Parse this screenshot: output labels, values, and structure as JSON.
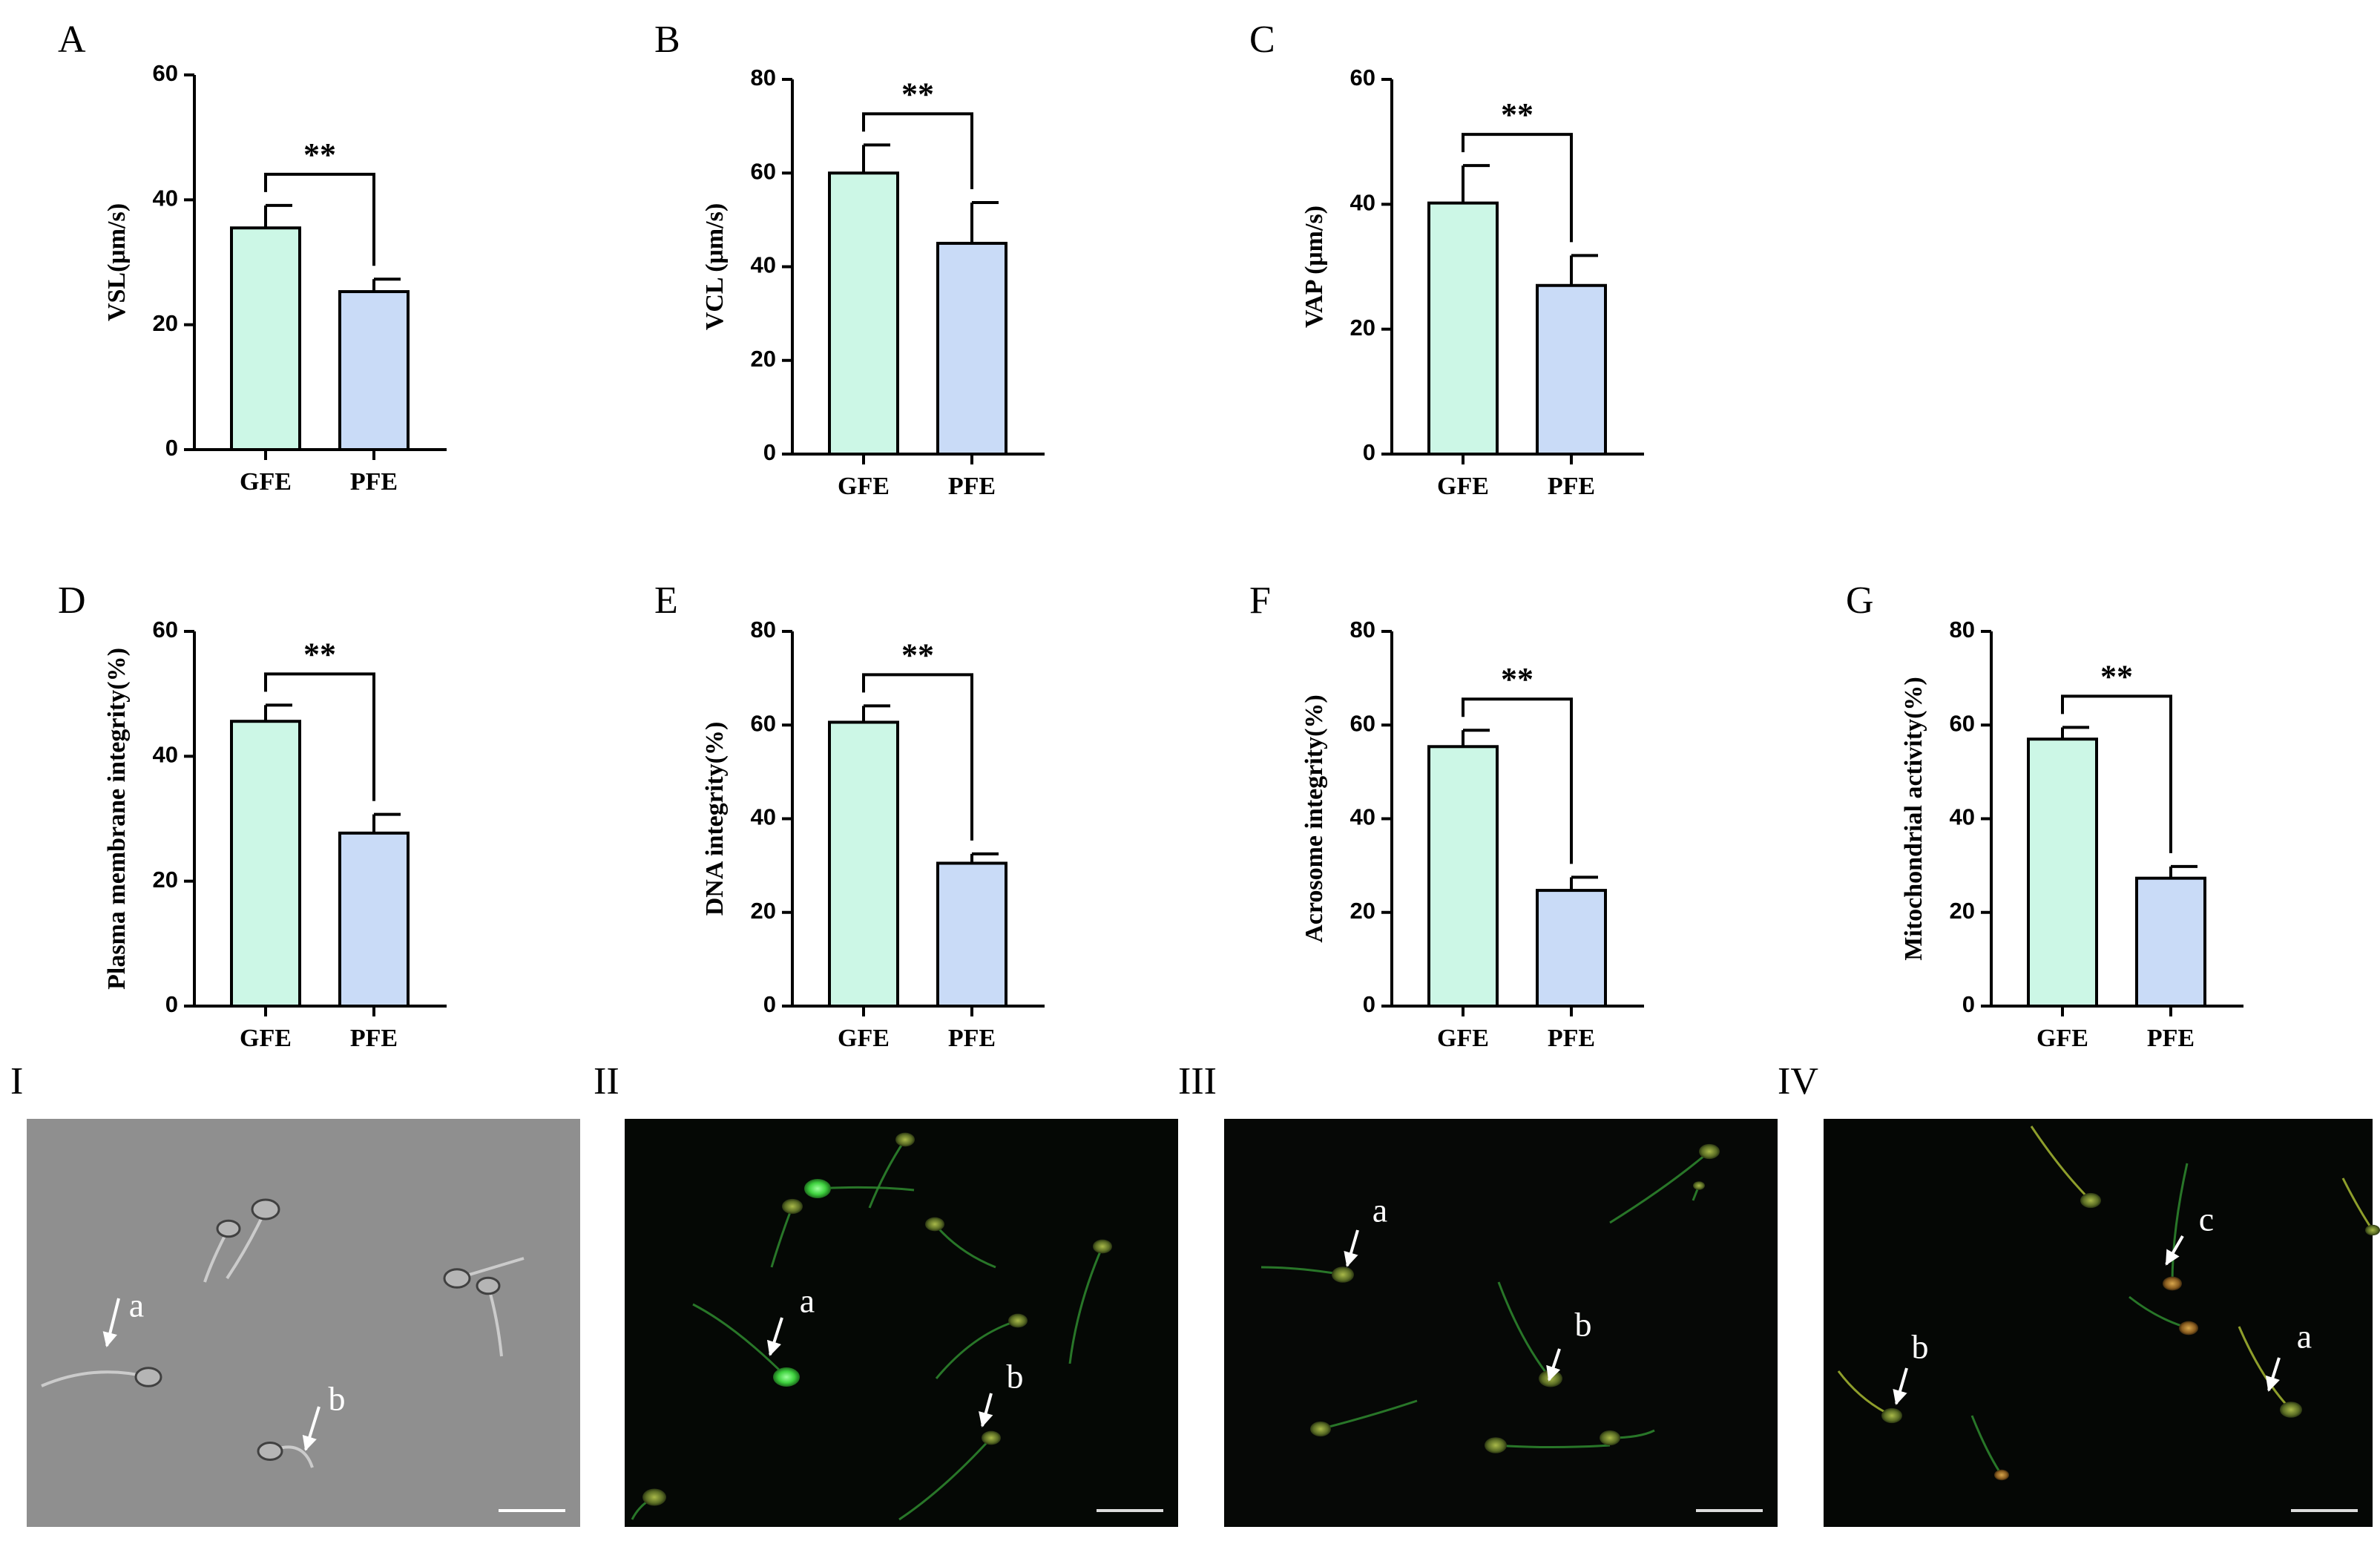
{
  "colors": {
    "gfe_fill": "#CCF7E6",
    "pfe_fill": "#C9DBF7",
    "axis": "#000000"
  },
  "chart_data": [
    {
      "panel": "A",
      "type": "bar",
      "categories": [
        "GFE",
        "PFE"
      ],
      "values": [
        35.5,
        25.3
      ],
      "errors": [
        3.6,
        2.0
      ],
      "ylabel": "VSL(μm/s)",
      "ylim": [
        0,
        60
      ],
      "yticks": [
        0,
        20,
        40,
        60
      ],
      "significance": "**",
      "grid": false
    },
    {
      "panel": "B",
      "type": "bar",
      "categories": [
        "GFE",
        "PFE"
      ],
      "values": [
        60,
        45
      ],
      "errors": [
        6,
        8.7
      ],
      "ylabel": "VCL (μm/s)",
      "ylim": [
        0,
        80
      ],
      "yticks": [
        0,
        20,
        40,
        60,
        80
      ],
      "significance": "**",
      "grid": false
    },
    {
      "panel": "C",
      "type": "bar",
      "categories": [
        "GFE",
        "PFE"
      ],
      "values": [
        40.2,
        27.0
      ],
      "errors": [
        6.0,
        4.8
      ],
      "ylabel": "VAP (μm/s)",
      "ylim": [
        0,
        60
      ],
      "yticks": [
        0,
        20,
        40,
        60
      ],
      "significance": "**",
      "grid": false
    },
    {
      "panel": "D",
      "type": "bar",
      "categories": [
        "GFE",
        "PFE"
      ],
      "values": [
        45.6,
        27.7
      ],
      "errors": [
        2.6,
        3.0
      ],
      "ylabel": "Plasma membrane integrity(%)",
      "ylim": [
        0,
        60
      ],
      "yticks": [
        0,
        20,
        40,
        60
      ],
      "significance": "**",
      "grid": false
    },
    {
      "panel": "E",
      "type": "bar",
      "categories": [
        "GFE",
        "PFE"
      ],
      "values": [
        60.6,
        30.5
      ],
      "errors": [
        3.5,
        2.0
      ],
      "ylabel": "DNA integrity(%)",
      "ylim": [
        0,
        80
      ],
      "yticks": [
        0,
        20,
        40,
        60,
        80
      ],
      "significance": "**",
      "grid": false
    },
    {
      "panel": "F",
      "type": "bar",
      "categories": [
        "GFE",
        "PFE"
      ],
      "values": [
        55.4,
        24.7
      ],
      "errors": [
        3.5,
        2.8
      ],
      "ylabel": "Acrosome integrity(%)",
      "ylim": [
        0,
        80
      ],
      "yticks": [
        0,
        20,
        40,
        60,
        80
      ],
      "significance": "**",
      "grid": false
    },
    {
      "panel": "G",
      "type": "bar",
      "categories": [
        "GFE",
        "PFE"
      ],
      "values": [
        57.0,
        27.3
      ],
      "errors": [
        2.5,
        2.5
      ],
      "ylabel": "Mitochondrial activity(%)",
      "ylim": [
        0,
        80
      ],
      "yticks": [
        0,
        20,
        40,
        60,
        80
      ],
      "significance": "**",
      "grid": false
    }
  ],
  "micrographs": [
    {
      "panel": "I",
      "style": "brightfield",
      "background": "#8f8f8f",
      "labels": [
        "a",
        "b"
      ]
    },
    {
      "panel": "II",
      "style": "fluorescence",
      "background": "#050805",
      "labels": [
        "a",
        "b"
      ]
    },
    {
      "panel": "III",
      "style": "fluorescence",
      "background": "#060806",
      "labels": [
        "a",
        "b"
      ]
    },
    {
      "panel": "IV",
      "style": "fluorescence",
      "background": "#050705",
      "labels": [
        "a",
        "b",
        "c"
      ]
    }
  ]
}
